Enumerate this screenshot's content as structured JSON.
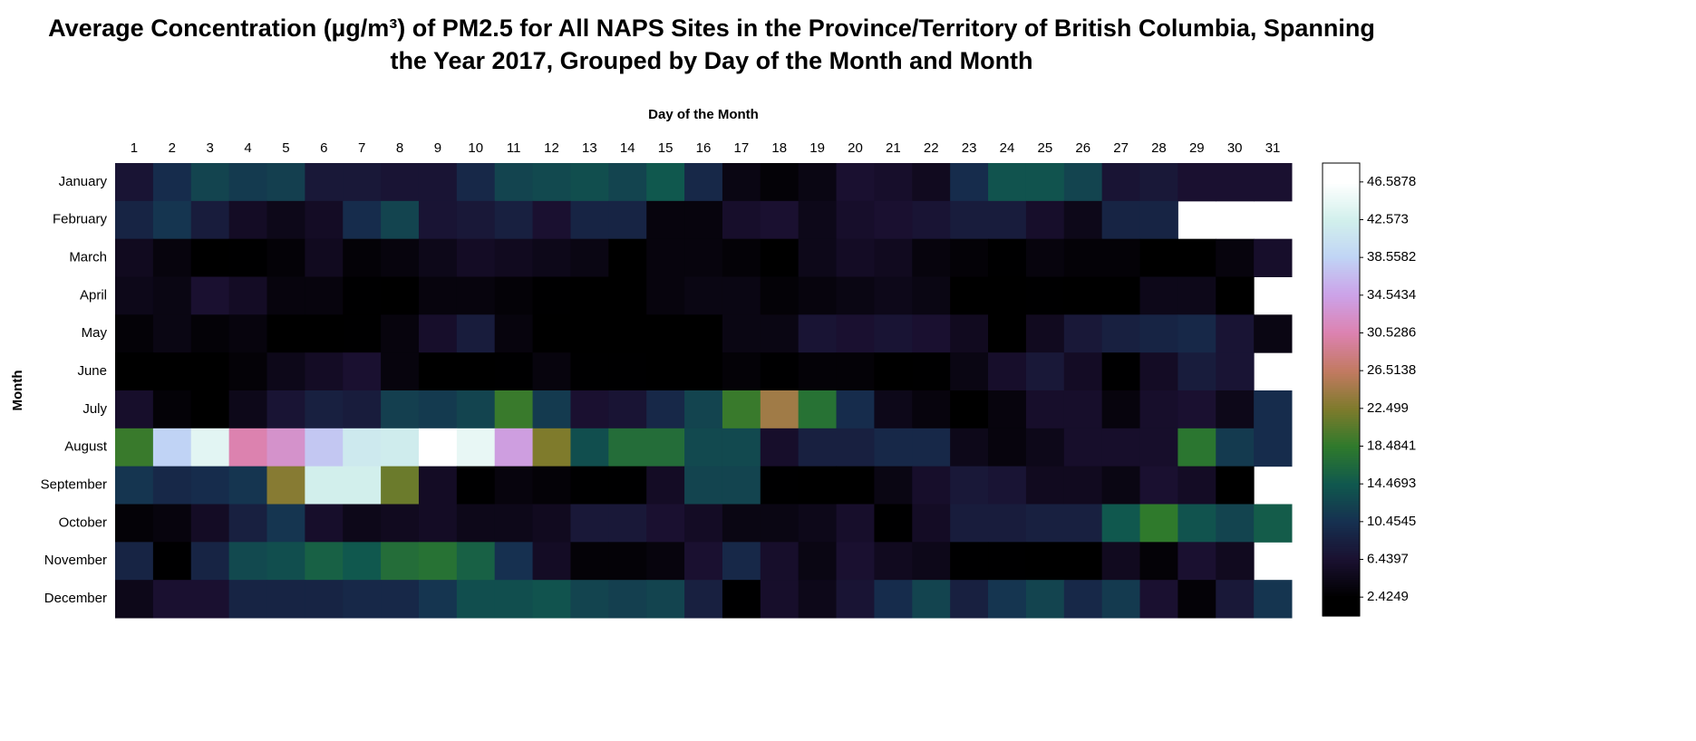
{
  "chart_data": {
    "type": "heatmap",
    "title": "Average Concentration (µg/m³) of PM2.5 for All NAPS Sites in the Province/Territory of British Columbia, Spanning the Year 2017, Grouped by Day of the Month and Month",
    "xlabel": "Day of the Month",
    "ylabel": "Month",
    "x": [
      1,
      2,
      3,
      4,
      5,
      6,
      7,
      8,
      9,
      10,
      11,
      12,
      13,
      14,
      15,
      16,
      17,
      18,
      19,
      20,
      21,
      22,
      23,
      24,
      25,
      26,
      27,
      28,
      29,
      30,
      31
    ],
    "y": [
      "January",
      "February",
      "March",
      "April",
      "May",
      "June",
      "July",
      "August",
      "September",
      "October",
      "November",
      "December"
    ],
    "values": [
      [
        7,
        10,
        12.5,
        11.5,
        12,
        7.5,
        7.5,
        7,
        7,
        9.5,
        12.5,
        13,
        13.5,
        12.5,
        14.5,
        9.5,
        4,
        3,
        4,
        6.5,
        6,
        5,
        10,
        14,
        14,
        12.5,
        7,
        7.5,
        6.5,
        6.5,
        6.5
      ],
      [
        9,
        11,
        8,
        5.5,
        4.5,
        5.5,
        10,
        12.5,
        7,
        7.5,
        8.5,
        6.5,
        9,
        9,
        3.5,
        3.5,
        6,
        6.5,
        4.5,
        6,
        6.5,
        7,
        8,
        8,
        6,
        4.5,
        9,
        9,
        null,
        null,
        null
      ],
      [
        5,
        3.5,
        2,
        2.5,
        3,
        5,
        3,
        3.5,
        4.5,
        5.5,
        5,
        4.5,
        4,
        2,
        3.5,
        3.5,
        3,
        1.5,
        4.5,
        5.5,
        5,
        3.5,
        3,
        2.5,
        3.5,
        3,
        3,
        1.5,
        2,
        3.5,
        6
      ],
      [
        4.5,
        4,
        6.5,
        5.5,
        3.5,
        3.5,
        2.5,
        2,
        3.5,
        3.5,
        3,
        2.5,
        2,
        2,
        3.5,
        4,
        4,
        3,
        3.5,
        4,
        4.5,
        4,
        1,
        1.5,
        2.5,
        1.5,
        1.5,
        4.5,
        4.5,
        1,
        null
      ],
      [
        3,
        4,
        3,
        3.5,
        1.5,
        1.5,
        2.5,
        3.5,
        6,
        8,
        3.5,
        0.8,
        1,
        1,
        0.8,
        1.5,
        4,
        4,
        7,
        6.5,
        7,
        6.5,
        5,
        1,
        5,
        7.5,
        8.5,
        9,
        9.5,
        7,
        4
      ],
      [
        0.6,
        0.6,
        2,
        3,
        4.5,
        5.5,
        6.5,
        3.5,
        1.5,
        2,
        2.5,
        3.5,
        2.5,
        2.5,
        2,
        0.8,
        3,
        2.5,
        3,
        3,
        2,
        2.5,
        4,
        6,
        7.5,
        5.5,
        2.5,
        5.5,
        8,
        7,
        null
      ],
      [
        6,
        3,
        2,
        4.5,
        7,
        8.5,
        8,
        12,
        11.5,
        12.5,
        19,
        11.5,
        6.5,
        7,
        9.5,
        12.5,
        19,
        24.5,
        17.5,
        10,
        4.5,
        3.5,
        2,
        3.5,
        6,
        6,
        3.5,
        6,
        6.5,
        4.5,
        10
      ],
      [
        19,
        38.5,
        44,
        30.5,
        32.5,
        37.5,
        41.5,
        42,
        47,
        44.5,
        34,
        22.5,
        13.5,
        17,
        17,
        13,
        13,
        6,
        8.5,
        8.5,
        9.5,
        9.5,
        4.5,
        3.5,
        4.5,
        6,
        6,
        6,
        18,
        11.5,
        10
      ],
      [
        11,
        9.5,
        10,
        11,
        23,
        42.5,
        42.5,
        21.5,
        5.5,
        2.5,
        3.5,
        3,
        2.5,
        2.5,
        5.5,
        12.5,
        12.5,
        2.5,
        1.5,
        2,
        4,
        6,
        7.5,
        7,
        5,
        5,
        4,
        6.5,
        5.5,
        2,
        null
      ],
      [
        3,
        3.5,
        5.5,
        8.5,
        11,
        6,
        4.5,
        5,
        5.5,
        4.5,
        4.5,
        5,
        7.5,
        7.5,
        6.5,
        5.5,
        4,
        4,
        4.5,
        6,
        2.5,
        5.5,
        8,
        8,
        8.5,
        8.5,
        14.5,
        18.5,
        14,
        12.5,
        15
      ],
      [
        9,
        2.5,
        9,
        13,
        13.5,
        15.5,
        14.5,
        17,
        17.5,
        15.5,
        10.5,
        5.5,
        3,
        3,
        3.5,
        6.5,
        9.5,
        6,
        4,
        6.5,
        5,
        4.5,
        2.5,
        2.5,
        2,
        1.8,
        5,
        3,
        6.5,
        5,
        null
      ],
      [
        4.5,
        6.5,
        6.5,
        9,
        9,
        9,
        9.5,
        9.5,
        11,
        13.5,
        13.5,
        14,
        12.5,
        12,
        12.5,
        8.5,
        2.5,
        6,
        4.5,
        7,
        10,
        12.5,
        8.5,
        11,
        12.5,
        9.5,
        11.5,
        6.5,
        3,
        7.5,
        11
      ]
    ],
    "zlim": [
      0.4175,
      48.5952
    ],
    "zticks": [
      2.4249,
      6.4397,
      10.4545,
      14.4693,
      18.4841,
      22.499,
      26.5138,
      30.5286,
      34.5434,
      38.5582,
      42.573,
      46.5878
    ],
    "colorscale": [
      "#000000",
      "#1a1030",
      "#163050",
      "#10584e",
      "#2f7a2c",
      "#7f7b2c",
      "#c27a62",
      "#dc82b0",
      "#cca2e8",
      "#c0d4f5",
      "#d2f0ec",
      "#ffffff"
    ]
  }
}
